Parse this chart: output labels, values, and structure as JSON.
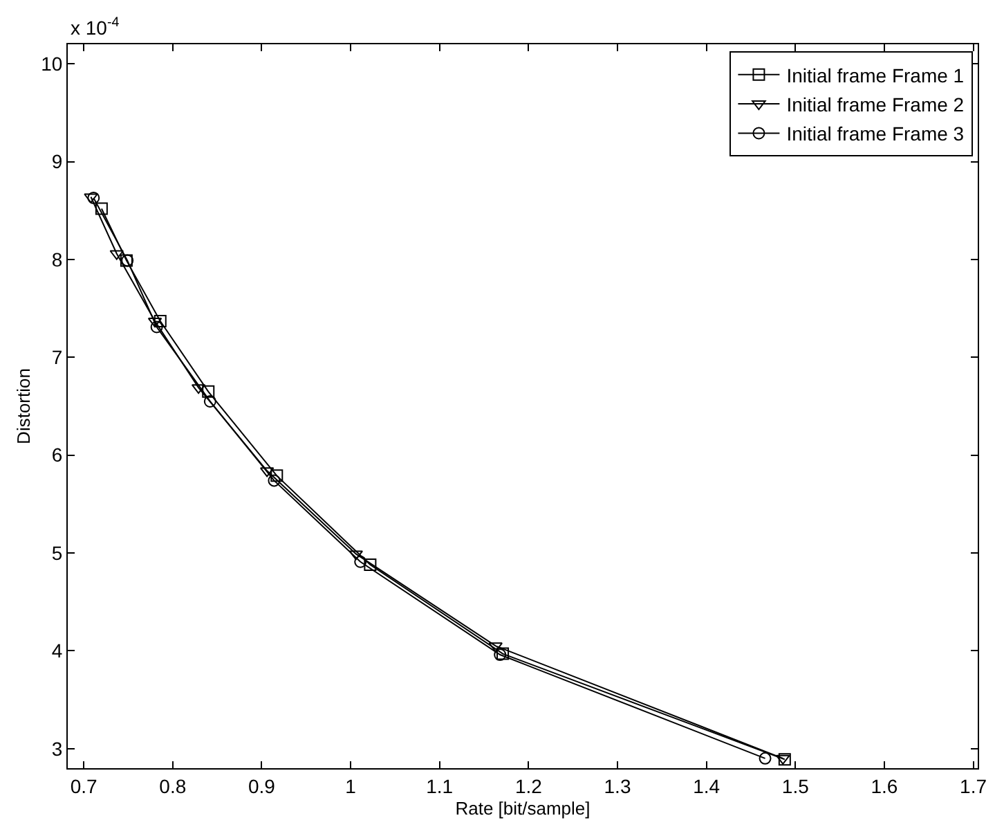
{
  "chart_data": {
    "type": "line",
    "xlabel": "Rate [bit/sample]",
    "ylabel": "Distortion",
    "annotations": [
      "x 10$^{-4}$"
    ],
    "xlim": [
      0.682,
      1.705
    ],
    "xticks": [
      0.7,
      0.8,
      0.9,
      1,
      1.1,
      1.2,
      1.3,
      1.4,
      1.5,
      1.6,
      1.7
    ],
    "ylim": [
      2.8,
      10.2
    ],
    "yticks": [
      3,
      4,
      5,
      6,
      7,
      8,
      9,
      10
    ],
    "grid": false,
    "legend": "top right",
    "line_style": "solid",
    "series": [
      {
        "name": "Initial frame Frame 1",
        "color": "#000000",
        "marker": "square",
        "x": [
          0.72,
          0.748,
          0.786,
          0.84,
          0.917,
          1.022,
          1.171,
          1.488
        ],
        "values": [
          8.52,
          7.99,
          7.37,
          6.65,
          5.79,
          4.88,
          3.97,
          2.89
        ]
      },
      {
        "name": "Initial frame Frame 2",
        "color": "#000000",
        "marker": "triangle",
        "x": [
          0.708,
          0.737,
          0.78,
          0.829,
          0.906,
          1.006,
          1.163,
          1.486
        ],
        "values": [
          8.64,
          8.06,
          7.37,
          6.69,
          5.84,
          4.99,
          4.05,
          2.9
        ]
      },
      {
        "name": "Initial frame Frame 3",
        "color": "#000000",
        "marker": "circle",
        "x": [
          0.711,
          0.749,
          0.782,
          0.842,
          0.914,
          1.011,
          1.168,
          1.466
        ],
        "values": [
          8.63,
          7.99,
          7.31,
          6.55,
          5.74,
          4.91,
          3.96,
          2.9
        ]
      }
    ]
  }
}
